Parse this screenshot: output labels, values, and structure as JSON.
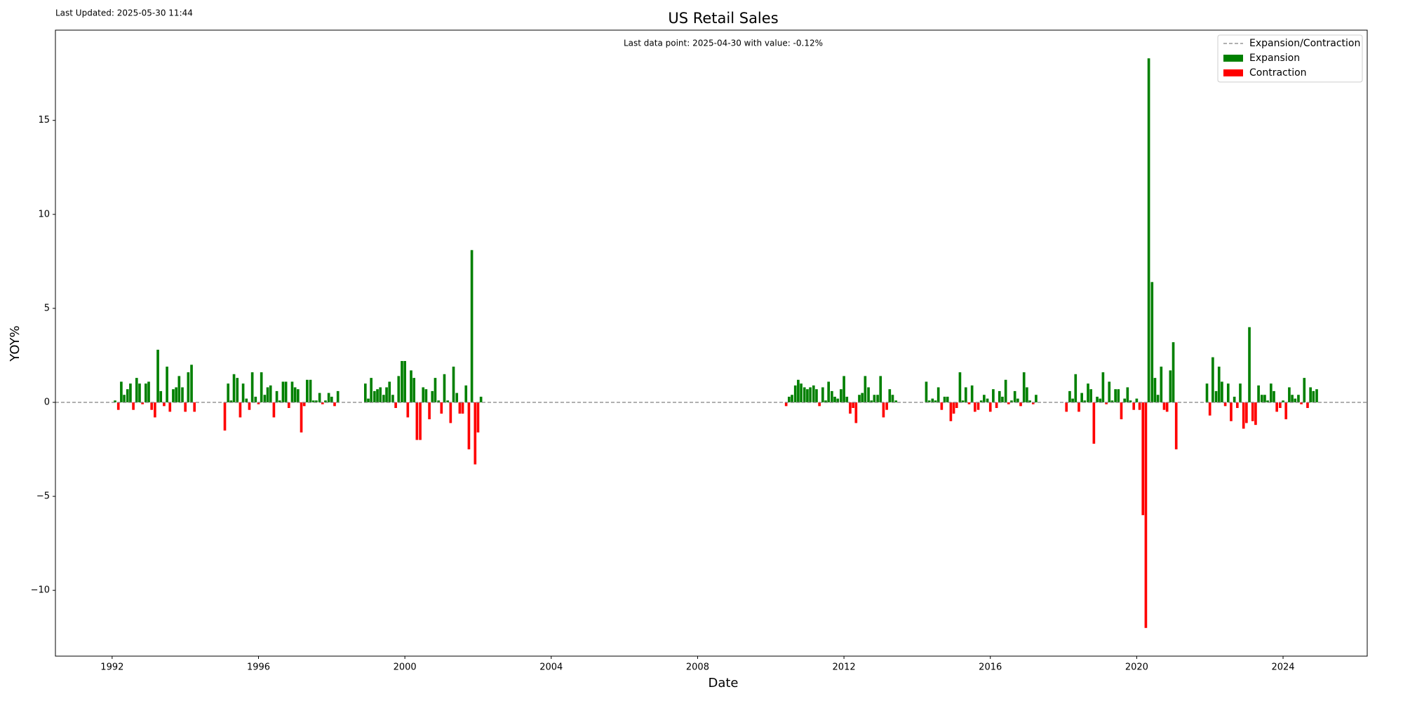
{
  "chart_data": {
    "type": "bar",
    "title": "US Retail Sales",
    "updated": "Last Updated: 2025-05-30 11:44",
    "annotation": "Last data point: 2025-04-30 with value: -0.12%",
    "xlabel": "Date",
    "ylabel": "YOY%",
    "xlim": [
      1990.45,
      2026.3
    ],
    "ylim": [
      -13.5,
      19.8
    ],
    "xticks": [
      1992,
      1996,
      2000,
      2004,
      2008,
      2012,
      2016,
      2020,
      2024
    ],
    "yticks": [
      {
        "value": -10,
        "label": "−10"
      },
      {
        "value": -5,
        "label": "−5"
      },
      0,
      5,
      10,
      15
    ],
    "reference_line": {
      "name": "Expansion/Contraction",
      "value": 0,
      "color": "#808080"
    },
    "positive": {
      "name": "Expansion",
      "color": "green"
    },
    "negative": {
      "name": "Contraction",
      "color": "red"
    },
    "legend": "upper right",
    "x": [
      1992.08,
      1992.17,
      1992.25,
      1992.33,
      1992.42,
      1992.5,
      1992.58,
      1992.67,
      1992.75,
      1992.83,
      1992.92,
      1993.0,
      1993.08,
      1993.17,
      1993.25,
      1993.33,
      1993.42,
      1993.5,
      1993.58,
      1993.67,
      1993.75,
      1993.83,
      1993.92,
      1994.0,
      1994.08,
      1994.17,
      1994.25,
      1995.08,
      1995.17,
      1995.25,
      1995.33,
      1995.42,
      1995.5,
      1995.58,
      1995.67,
      1995.75,
      1995.83,
      1995.92,
      1996.0,
      1996.08,
      1996.17,
      1996.25,
      1996.33,
      1996.42,
      1996.5,
      1996.58,
      1996.67,
      1996.75,
      1996.83,
      1996.92,
      1997.0,
      1997.08,
      1997.17,
      1997.25,
      1997.33,
      1997.42,
      1997.5,
      1997.58,
      1997.67,
      1997.75,
      1997.83,
      1997.92,
      1998.0,
      1998.08,
      1998.17,
      1998.92,
      1999.0,
      1999.08,
      1999.17,
      1999.25,
      1999.33,
      1999.42,
      1999.5,
      1999.58,
      1999.67,
      1999.75,
      1999.83,
      1999.92,
      2000.0,
      2000.08,
      2000.17,
      2000.25,
      2000.33,
      2000.42,
      2000.5,
      2000.58,
      2000.67,
      2000.75,
      2000.83,
      2000.92,
      2001.0,
      2001.08,
      2001.17,
      2001.25,
      2001.33,
      2001.42,
      2001.5,
      2001.58,
      2001.67,
      2001.75,
      2001.83,
      2001.92,
      2002.0,
      2002.08,
      2010.42,
      2010.5,
      2010.58,
      2010.67,
      2010.75,
      2010.83,
      2010.92,
      2011.0,
      2011.08,
      2011.17,
      2011.25,
      2011.33,
      2011.42,
      2011.5,
      2011.58,
      2011.67,
      2011.75,
      2011.83,
      2011.92,
      2012.0,
      2012.08,
      2012.17,
      2012.25,
      2012.33,
      2012.42,
      2012.5,
      2012.58,
      2012.67,
      2012.75,
      2012.83,
      2012.92,
      2013.0,
      2013.08,
      2013.17,
      2013.25,
      2013.33,
      2013.42,
      2014.25,
      2014.33,
      2014.42,
      2014.5,
      2014.58,
      2014.67,
      2014.75,
      2014.83,
      2014.92,
      2015.0,
      2015.08,
      2015.17,
      2015.25,
      2015.33,
      2015.42,
      2015.5,
      2015.58,
      2015.67,
      2015.75,
      2015.83,
      2015.92,
      2016.0,
      2016.08,
      2016.17,
      2016.25,
      2016.33,
      2016.42,
      2016.5,
      2016.58,
      2016.67,
      2016.75,
      2016.83,
      2016.92,
      2017.0,
      2017.08,
      2017.17,
      2017.25,
      2018.08,
      2018.17,
      2018.25,
      2018.33,
      2018.42,
      2018.5,
      2018.58,
      2018.67,
      2018.75,
      2018.83,
      2018.92,
      2019.0,
      2019.08,
      2019.17,
      2019.25,
      2019.33,
      2019.42,
      2019.5,
      2019.58,
      2019.67,
      2019.75,
      2019.83,
      2019.92,
      2020.0,
      2020.08,
      2020.17,
      2020.25,
      2020.33,
      2020.42,
      2020.5,
      2020.58,
      2020.67,
      2020.75,
      2020.83,
      2020.92,
      2021.0,
      2021.08,
      2021.92,
      2022.0,
      2022.08,
      2022.17,
      2022.25,
      2022.33,
      2022.42,
      2022.5,
      2022.58,
      2022.67,
      2022.75,
      2022.83,
      2022.92,
      2023.0,
      2023.08,
      2023.17,
      2023.25,
      2023.33,
      2023.42,
      2023.5,
      2023.58,
      2023.67,
      2023.75,
      2023.83,
      2023.92,
      2024.0,
      2024.08,
      2024.17,
      2024.25,
      2024.33,
      2024.42,
      2024.5,
      2024.58,
      2024.67,
      2024.75,
      2024.83,
      2024.92
    ],
    "values": [
      0.1,
      -0.4,
      1.1,
      0.4,
      0.7,
      1.0,
      -0.4,
      1.3,
      1.0,
      -0.1,
      1.0,
      1.1,
      -0.4,
      -0.8,
      2.8,
      0.6,
      -0.2,
      1.9,
      -0.5,
      0.7,
      0.8,
      1.4,
      0.8,
      -0.5,
      1.6,
      2.0,
      -0.5,
      -1.5,
      1.0,
      0.1,
      1.5,
      1.3,
      -0.8,
      1.0,
      0.2,
      -0.4,
      1.6,
      0.3,
      -0.1,
      1.6,
      0.4,
      0.8,
      0.9,
      -0.8,
      0.6,
      0.1,
      1.1,
      1.1,
      -0.3,
      1.1,
      0.8,
      0.7,
      -1.6,
      -0.2,
      1.2,
      1.2,
      0.1,
      0.1,
      0.5,
      -0.1,
      0.1,
      0.5,
      0.3,
      -0.2,
      0.6,
      1.0,
      0.2,
      1.3,
      0.6,
      0.7,
      0.8,
      0.4,
      0.8,
      1.1,
      0.4,
      -0.3,
      1.4,
      2.2,
      2.2,
      -0.8,
      1.7,
      1.3,
      -2.0,
      -2.0,
      0.8,
      0.7,
      -0.9,
      0.6,
      1.3,
      0.1,
      -0.6,
      1.5,
      0.1,
      -1.1,
      1.9,
      0.5,
      -0.6,
      -0.6,
      0.9,
      -2.5,
      8.1,
      -3.3,
      -1.6,
      0.3,
      -0.2,
      0.3,
      0.4,
      0.9,
      1.2,
      1.0,
      0.8,
      0.7,
      0.8,
      0.9,
      0.7,
      -0.2,
      0.8,
      0.1,
      1.1,
      0.6,
      0.3,
      0.2,
      0.7,
      1.4,
      0.3,
      -0.6,
      -0.3,
      -1.1,
      0.4,
      0.5,
      1.4,
      0.8,
      0.1,
      0.4,
      0.4,
      1.4,
      -0.8,
      -0.4,
      0.7,
      0.4,
      0.1,
      1.1,
      0.1,
      0.2,
      0.1,
      0.8,
      -0.4,
      0.3,
      0.3,
      -1.0,
      -0.6,
      -0.3,
      1.6,
      0.1,
      0.8,
      -0.1,
      0.9,
      -0.5,
      -0.4,
      0.1,
      0.4,
      0.2,
      -0.5,
      0.7,
      -0.3,
      0.6,
      0.3,
      1.2,
      -0.1,
      0.1,
      0.6,
      0.2,
      -0.2,
      1.6,
      0.8,
      0.1,
      -0.1,
      0.4,
      -0.5,
      0.6,
      0.2,
      1.5,
      -0.5,
      0.5,
      0.1,
      1.0,
      0.7,
      -2.2,
      0.3,
      0.2,
      1.6,
      -0.1,
      1.1,
      0.1,
      0.7,
      0.7,
      -0.9,
      0.2,
      0.8,
      0.1,
      -0.4,
      0.2,
      -0.4,
      -6.0,
      -12.0,
      18.3,
      6.4,
      1.3,
      0.4,
      1.9,
      -0.4,
      -0.5,
      1.7,
      3.2,
      -2.5,
      1.0,
      -0.7,
      2.4,
      0.6,
      1.9,
      1.1,
      -0.2,
      1.0,
      -1.0,
      0.3,
      -0.3,
      1.0,
      -1.4,
      -1.1,
      4.0,
      -1.0,
      -1.2,
      0.9,
      0.4,
      0.4,
      0.1,
      1.0,
      0.6,
      -0.5,
      -0.3,
      0.1,
      -0.9,
      0.8,
      0.4,
      0.2,
      0.4,
      -0.1,
      1.3,
      -0.3,
      0.8,
      0.6,
      0.7
    ]
  }
}
